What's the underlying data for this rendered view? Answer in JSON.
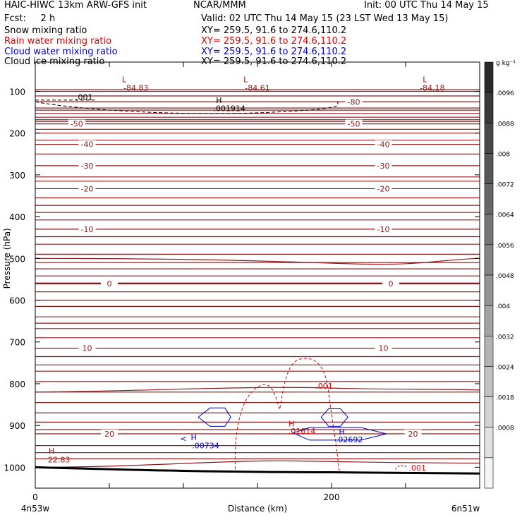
{
  "header": {
    "line1_left": "HAIC-HIWC 13km ARW-GFS init",
    "line1_mid": "NCAR/MMM",
    "line1_right": "Init: 00 UTC Thu 14 May 15",
    "line2_left": "Fcst:     2 h",
    "line2_right": "Valid: 02 UTC Thu 14 May 15 (23 LST Wed 13 May 15)"
  },
  "fields": [
    {
      "label": "Snow mixing ratio",
      "xy": "XY= 259.5, 91.6 to 274.6,110.2",
      "color": "#000000"
    },
    {
      "label": "Rain water mixing ratio",
      "xy": "XY= 259.5, 91.6 to 274.6,110.2",
      "color": "#e00000"
    },
    {
      "label": "Cloud water mixing ratio",
      "xy": "XY= 259.5, 91.6 to 274.6,110.2",
      "color": "#0000c8"
    },
    {
      "label": "Cloud ice mixing ratio",
      "xy": "XY= 259.5, 91.6 to 274.6,110.2",
      "color": "#000000"
    }
  ],
  "chart_data": {
    "type": "cross-section contour",
    "ylabel": "Pressure (hPa)",
    "xlabel": "Distance (km)",
    "x_ticks": [
      0,
      200
    ],
    "x_end_labels": [
      "4n53w",
      "6n51w"
    ],
    "y_ticks": [
      100,
      200,
      300,
      400,
      500,
      600,
      700,
      800,
      900,
      1000
    ],
    "xlim": [
      0,
      300
    ],
    "ylim": [
      1050,
      30
    ],
    "colorbar": {
      "unit": "g kg⁻¹",
      "ticks": [
        ".0096",
        ".0088",
        ".008",
        ".0072",
        ".0064",
        ".0056",
        ".0048",
        ".004",
        ".0032",
        ".0024",
        ".0018",
        ".0008"
      ],
      "grays": [
        "#2a2a2a",
        "#393939",
        "#484848",
        "#575757",
        "#666666",
        "#757575",
        "#858585",
        "#949494",
        "#a3a3a3",
        "#b3b3b3",
        "#c2c2c2",
        "#d2d2d2",
        "#e1e1e1",
        "#f5f5f5"
      ]
    },
    "temperature_contours": [
      {
        "label": "-80",
        "p": 125
      },
      {
        "label": "-50",
        "p": 178
      },
      {
        "label": "-40",
        "p": 227
      },
      {
        "label": "-30",
        "p": 278
      },
      {
        "label": "-20",
        "p": 333
      },
      {
        "label": "-10",
        "p": 430
      },
      {
        "label": "0",
        "p": 560
      },
      {
        "label": "10",
        "p": 715
      },
      {
        "label": "20",
        "p": 920
      }
    ],
    "annotations": [
      {
        "text": "L",
        "x": 60,
        "p": 78,
        "color": "#8b1a1a"
      },
      {
        "text": "-84.83",
        "x": 68,
        "p": 98,
        "color": "#8b1a1a"
      },
      {
        "text": "L",
        "x": 142,
        "p": 78,
        "color": "#8b1a1a"
      },
      {
        "text": "-84.61",
        "x": 150,
        "p": 98,
        "color": "#8b1a1a"
      },
      {
        "text": "L",
        "x": 263,
        "p": 78,
        "color": "#8b1a1a"
      },
      {
        "text": "-84.18",
        "x": 268,
        "p": 98,
        "color": "#8b1a1a"
      },
      {
        "text": ".001",
        "x": 33,
        "p": 120,
        "color": "#000000"
      },
      {
        "text": "H",
        "x": 124,
        "p": 128,
        "color": "#000000"
      },
      {
        "text": ".001914",
        "x": 131,
        "p": 147,
        "color": "#000000"
      },
      {
        "text": ".001",
        "x": 195,
        "p": 812,
        "color": "#e00000"
      },
      {
        "text": "H",
        "x": 173,
        "p": 902,
        "color": "#e00000"
      },
      {
        "text": ".01614",
        "x": 180,
        "p": 920,
        "color": "#e00000"
      },
      {
        "text": "H",
        "x": 207,
        "p": 922,
        "color": "#0000c8"
      },
      {
        "text": ".02692",
        "x": 212,
        "p": 940,
        "color": "#0000c8"
      },
      {
        "text": "<",
        "x": 100,
        "p": 938,
        "color": "#0000c8"
      },
      {
        "text": "H",
        "x": 107,
        "p": 935,
        "color": "#0000c8"
      },
      {
        "text": ".00734",
        "x": 115,
        "p": 955,
        "color": "#0000c8"
      },
      {
        "text": "H",
        "x": 11,
        "p": 967,
        "color": "#8b1a1a"
      },
      {
        "text": "22.83",
        "x": 16,
        "p": 988,
        "color": "#8b1a1a"
      },
      {
        "text": ".001",
        "x": 258,
        "p": 1008,
        "color": "#e00000"
      }
    ]
  }
}
